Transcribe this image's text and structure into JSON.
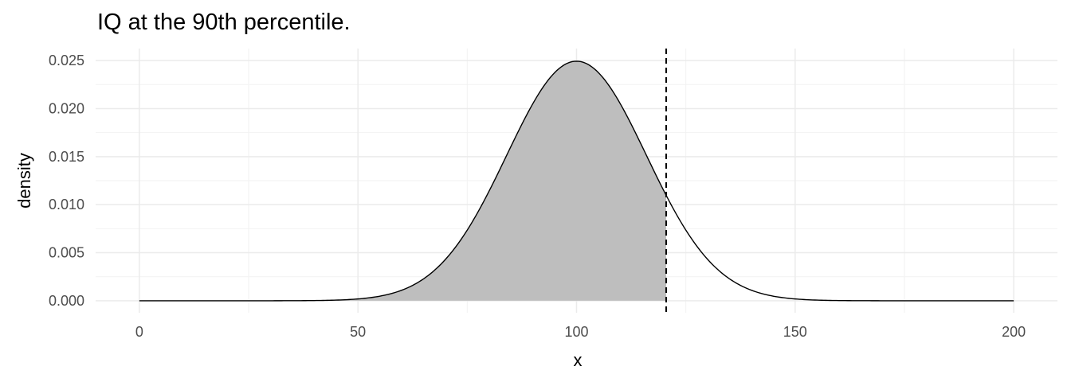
{
  "chart_data": {
    "type": "area",
    "title": "IQ at the 90th percentile.",
    "xlabel": "x",
    "ylabel": "density",
    "xlim": [
      -10,
      210
    ],
    "ylim": [
      -0.00125,
      0.02625
    ],
    "x_ticks": [
      0,
      50,
      100,
      150,
      200
    ],
    "x_tick_labels": [
      "0",
      "50",
      "100",
      "150",
      "200"
    ],
    "y_ticks": [
      0.0,
      0.005,
      0.01,
      0.015,
      0.02,
      0.025
    ],
    "y_tick_labels": [
      "0.000",
      "0.005",
      "0.010",
      "0.015",
      "0.020",
      "0.025"
    ],
    "x_minor_ticks": [
      25,
      75,
      125,
      175
    ],
    "y_minor_ticks": [
      0.0025,
      0.0075,
      0.0125,
      0.0175,
      0.0225
    ],
    "grid": true,
    "distribution": {
      "name": "normal",
      "mean": 100,
      "sd": 16,
      "x_range": [
        0,
        200
      ]
    },
    "shaded_region": {
      "from": 0,
      "to": 120.5,
      "fill": "#bebebe"
    },
    "reference_line": {
      "x": 120.5,
      "style": "dashed",
      "color": "#000000"
    },
    "line_color": "#000000",
    "grid_color": "#ebebeb"
  }
}
